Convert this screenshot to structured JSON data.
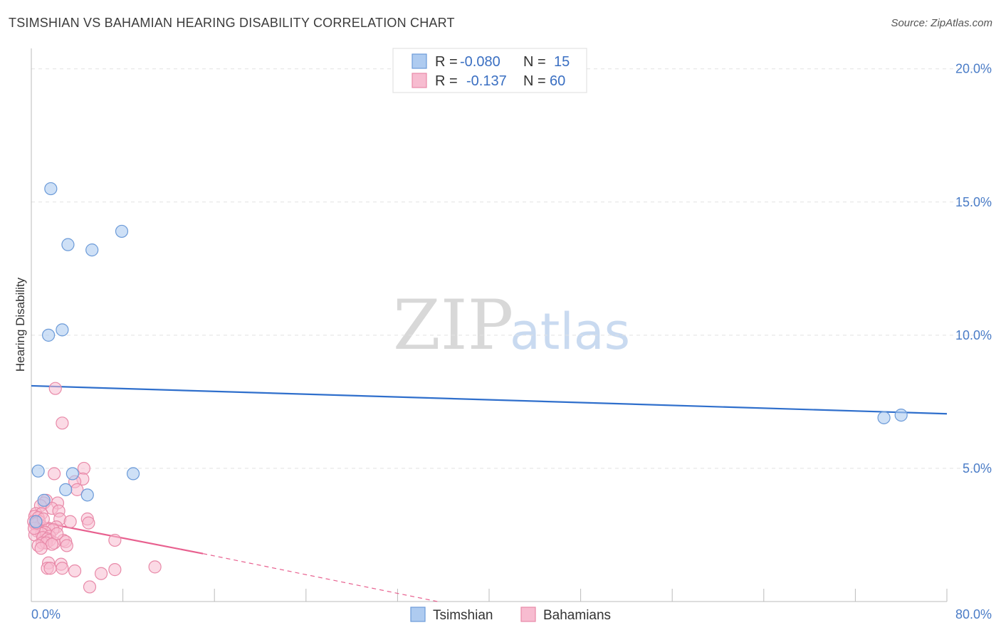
{
  "header": {
    "title": "TSIMSHIAN VS BAHAMIAN HEARING DISABILITY CORRELATION CHART",
    "source": "Source: ZipAtlas.com"
  },
  "watermark": {
    "zip": "ZIP",
    "atlas": "atlas"
  },
  "legend": {
    "rows": [
      {
        "r_label": "R =",
        "r_value": "-0.080",
        "n_label": "N =",
        "n_value": "15"
      },
      {
        "r_label": "R =",
        "r_value": "-0.137",
        "n_label": "N =",
        "n_value": "60"
      }
    ]
  },
  "bottom_legend": [
    "Tsimshian",
    "Bahamians"
  ],
  "chart_data": {
    "type": "scatter",
    "title": "TSIMSHIAN VS BAHAMIAN HEARING DISABILITY CORRELATION CHART",
    "xlabel": "",
    "ylabel": "Hearing Disability",
    "xlim": [
      0,
      80
    ],
    "ylim": [
      0,
      20.5
    ],
    "x_tick_labels": [
      "0.0%",
      "80.0%"
    ],
    "y_ticks": [
      5,
      10,
      15,
      20
    ],
    "y_tick_labels": [
      "5.0%",
      "10.0%",
      "15.0%",
      "20.0%"
    ],
    "grid": true,
    "legend_position": "top-center",
    "colors": {
      "tsimshian_fill": "#aecbf0",
      "tsimshian_stroke": "#6b9ad8",
      "tsimshian_line": "#2f6fcc",
      "bahamian_fill": "#f7bcd0",
      "bahamian_stroke": "#e889a8",
      "bahamian_line": "#e8608f"
    },
    "series": [
      {
        "name": "Tsimshian",
        "points": [
          [
            1.7,
            15.5
          ],
          [
            3.2,
            13.4
          ],
          [
            5.3,
            13.2
          ],
          [
            7.9,
            13.9
          ],
          [
            1.5,
            10.0
          ],
          [
            2.7,
            10.2
          ],
          [
            0.6,
            4.9
          ],
          [
            3.6,
            4.8
          ],
          [
            8.9,
            4.8
          ],
          [
            3.0,
            4.2
          ],
          [
            4.9,
            4.0
          ],
          [
            1.1,
            3.8
          ],
          [
            74.5,
            6.9
          ],
          [
            76.0,
            7.0
          ],
          [
            0.4,
            3.0
          ]
        ],
        "trend": {
          "x": [
            0,
            80
          ],
          "y": [
            8.1,
            7.05
          ]
        }
      },
      {
        "name": "Bahamians",
        "points": [
          [
            2.1,
            8.0
          ],
          [
            2.7,
            6.7
          ],
          [
            4.6,
            5.0
          ],
          [
            2.0,
            4.8
          ],
          [
            4.5,
            4.6
          ],
          [
            3.8,
            4.5
          ],
          [
            4.0,
            4.2
          ],
          [
            1.3,
            3.8
          ],
          [
            1.1,
            3.7
          ],
          [
            2.3,
            3.7
          ],
          [
            0.8,
            3.6
          ],
          [
            1.8,
            3.5
          ],
          [
            2.4,
            3.4
          ],
          [
            0.4,
            3.3
          ],
          [
            0.9,
            3.3
          ],
          [
            0.3,
            3.2
          ],
          [
            0.6,
            3.15
          ],
          [
            2.5,
            3.1
          ],
          [
            4.9,
            3.1
          ],
          [
            0.2,
            3.0
          ],
          [
            0.7,
            3.0
          ],
          [
            3.4,
            3.0
          ],
          [
            5.0,
            2.95
          ],
          [
            0.35,
            2.9
          ],
          [
            0.8,
            2.85
          ],
          [
            2.2,
            2.8
          ],
          [
            1.5,
            2.75
          ],
          [
            1.9,
            2.7
          ],
          [
            0.5,
            2.65
          ],
          [
            1.2,
            2.6
          ],
          [
            0.9,
            2.55
          ],
          [
            0.3,
            2.5
          ],
          [
            1.6,
            2.45
          ],
          [
            1.0,
            2.4
          ],
          [
            1.4,
            2.35
          ],
          [
            7.3,
            2.3
          ],
          [
            2.8,
            2.3
          ],
          [
            1.6,
            2.3
          ],
          [
            3.0,
            2.25
          ],
          [
            0.95,
            2.2
          ],
          [
            1.3,
            2.2
          ],
          [
            2.0,
            2.2
          ],
          [
            1.8,
            2.15
          ],
          [
            3.1,
            2.1
          ],
          [
            0.6,
            2.1
          ],
          [
            0.85,
            2.0
          ],
          [
            1.5,
            1.45
          ],
          [
            2.6,
            1.4
          ],
          [
            1.4,
            1.25
          ],
          [
            1.65,
            1.25
          ],
          [
            2.7,
            1.25
          ],
          [
            10.8,
            1.3
          ],
          [
            7.3,
            1.2
          ],
          [
            3.8,
            1.15
          ],
          [
            6.1,
            1.05
          ],
          [
            5.1,
            0.55
          ],
          [
            0.25,
            2.75
          ],
          [
            0.45,
            2.95
          ],
          [
            1.05,
            3.1
          ],
          [
            2.25,
            2.55
          ]
        ],
        "trend": {
          "x": [
            0,
            15
          ],
          "y": [
            3.05,
            1.8
          ]
        },
        "trend_extension": {
          "x": [
            15,
            35.5
          ],
          "y": [
            1.8,
            0.0
          ]
        }
      }
    ]
  }
}
